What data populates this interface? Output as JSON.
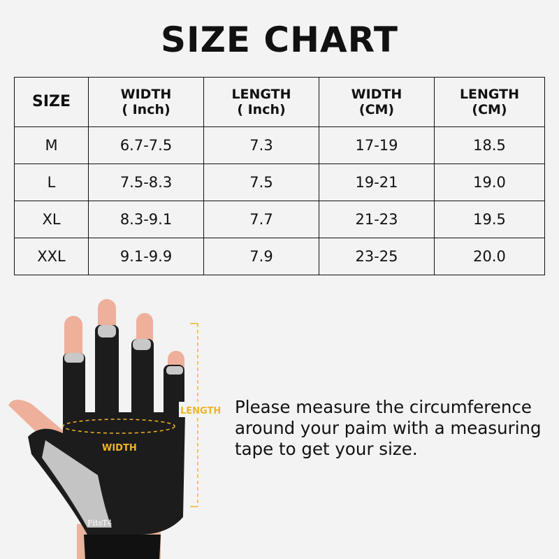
{
  "title": "SIZE CHART",
  "table": {
    "headers": [
      {
        "line1": "SIZE",
        "line2": ""
      },
      {
        "line1": "WIDTH",
        "line2": "( Inch)"
      },
      {
        "line1": "LENGTH",
        "line2": "( Inch)"
      },
      {
        "line1": "WIDTH",
        "line2": "(CM)"
      },
      {
        "line1": "LENGTH",
        "line2": "(CM)"
      }
    ],
    "rows": [
      [
        "M",
        "6.7-7.5",
        "7.3",
        "17-19",
        "18.5"
      ],
      [
        "L",
        "7.5-8.3",
        "7.5",
        "19-21",
        "19.0"
      ],
      [
        "XL",
        "8.3-9.1",
        "7.7",
        "21-23",
        "19.5"
      ],
      [
        "XXL",
        "9.1-9.9",
        "7.9",
        "23-25",
        "20.0"
      ]
    ]
  },
  "illustration": {
    "length_label": "LENGTH",
    "width_label": "WIDTH",
    "brand": "FitsT4",
    "accent_color": "#f0b429"
  },
  "instructions": [
    "Please measure the circumference",
    "around your paim with a measuring",
    "tape to get your size."
  ]
}
